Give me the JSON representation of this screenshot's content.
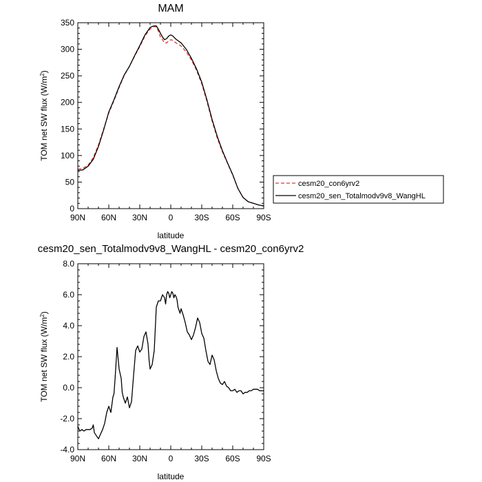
{
  "chart_data": [
    {
      "type": "line",
      "title": "MAM",
      "xlabel": "latitude",
      "ylabel": "TOM net SW flux (W/m",
      "ylabel_superscript": "2",
      "ylabel_close": ")",
      "xlim": [
        90,
        -90
      ],
      "ylim": [
        0,
        350
      ],
      "x_ticks": [
        {
          "value": 90,
          "label": "90N"
        },
        {
          "value": 60,
          "label": "60N"
        },
        {
          "value": 30,
          "label": "30N"
        },
        {
          "value": 0,
          "label": "0"
        },
        {
          "value": -30,
          "label": "30S"
        },
        {
          "value": -60,
          "label": "60S"
        },
        {
          "value": -90,
          "label": "90S"
        }
      ],
      "y_ticks": [
        {
          "value": 0,
          "label": "0"
        },
        {
          "value": 50,
          "label": "50"
        },
        {
          "value": 100,
          "label": "100"
        },
        {
          "value": 150,
          "label": "150"
        },
        {
          "value": 200,
          "label": "200"
        },
        {
          "value": 250,
          "label": "250"
        },
        {
          "value": 300,
          "label": "300"
        },
        {
          "value": 350,
          "label": "350"
        }
      ],
      "legend_position": "right",
      "series": [
        {
          "name": "cesm20_con6yrv2",
          "color": "#e8352e",
          "dash": "dashed",
          "x": [
            90,
            85,
            80,
            75,
            70,
            65,
            60,
            55,
            50,
            45,
            40,
            35,
            30,
            25,
            20,
            18,
            16,
            14,
            12,
            10,
            8,
            6,
            4,
            2,
            0,
            -2,
            -5,
            -10,
            -15,
            -20,
            -25,
            -30,
            -35,
            -40,
            -45,
            -50,
            -55,
            -60,
            -65,
            -70,
            -75,
            -80,
            -85,
            -90
          ],
          "y": [
            74,
            76,
            82,
            96,
            120,
            150,
            180,
            203,
            228,
            251,
            268,
            287,
            305,
            325,
            338,
            341,
            343,
            342,
            334,
            323,
            318,
            312,
            312,
            316,
            318,
            317,
            312,
            306,
            295,
            280,
            260,
            235,
            202,
            165,
            133,
            107,
            85,
            63,
            38,
            21,
            13,
            10,
            7,
            5
          ]
        },
        {
          "name": "cesm20_sen_Totalmodv9v8_WangHL",
          "color": "#000000",
          "dash": "solid",
          "x": [
            90,
            85,
            80,
            75,
            70,
            65,
            60,
            55,
            50,
            45,
            40,
            35,
            30,
            25,
            20,
            18,
            16,
            14,
            12,
            10,
            8,
            6,
            4,
            2,
            0,
            -2,
            -5,
            -10,
            -15,
            -20,
            -25,
            -30,
            -35,
            -40,
            -45,
            -50,
            -55,
            -60,
            -65,
            -70,
            -75,
            -80,
            -85,
            -90
          ],
          "y": [
            72,
            73,
            80,
            93,
            117,
            148,
            182,
            205,
            230,
            252,
            268,
            288,
            307,
            327,
            341,
            343,
            344,
            344,
            338,
            330,
            323,
            318,
            320,
            325,
            327,
            325,
            319,
            312,
            300,
            283,
            263,
            238,
            205,
            168,
            136,
            109,
            86,
            64,
            38,
            21,
            13,
            10,
            7,
            5
          ]
        }
      ]
    },
    {
      "type": "line",
      "title": "cesm20_sen_Totalmodv9v8_WangHL - cesm20_con6yrv2",
      "xlabel": "latitude",
      "ylabel": "TOM net SW flux (W/m",
      "ylabel_superscript": "2",
      "ylabel_close": ")",
      "xlim": [
        90,
        -90
      ],
      "ylim": [
        -4,
        8
      ],
      "x_ticks": [
        {
          "value": 90,
          "label": "90N"
        },
        {
          "value": 60,
          "label": "60N"
        },
        {
          "value": 30,
          "label": "30N"
        },
        {
          "value": 0,
          "label": "0"
        },
        {
          "value": -30,
          "label": "30S"
        },
        {
          "value": -60,
          "label": "60S"
        },
        {
          "value": -90,
          "label": "90S"
        }
      ],
      "y_ticks": [
        {
          "value": -4,
          "label": "-4.0"
        },
        {
          "value": -2,
          "label": "-2.0"
        },
        {
          "value": 0,
          "label": "0.0"
        },
        {
          "value": 2,
          "label": "2.0"
        },
        {
          "value": 4,
          "label": "4.0"
        },
        {
          "value": 6,
          "label": "6.0"
        },
        {
          "value": 8,
          "label": "8.0"
        }
      ],
      "series": [
        {
          "color": "#000000",
          "dash": "solid",
          "x": [
            90,
            88,
            86,
            84,
            82,
            80,
            78,
            76,
            75,
            74,
            72,
            70,
            68,
            66,
            64,
            62,
            60,
            58,
            56,
            55,
            54,
            52,
            50,
            48,
            47,
            46,
            45,
            44,
            42,
            40,
            38,
            36,
            34,
            32,
            30,
            28,
            26,
            24,
            22,
            21,
            20,
            18,
            16,
            14,
            12,
            10,
            8,
            6,
            5,
            4,
            3,
            2,
            1,
            0,
            -1,
            -2,
            -3,
            -4,
            -5,
            -6,
            -7,
            -8,
            -9,
            -10,
            -12,
            -14,
            -16,
            -18,
            -20,
            -22,
            -24,
            -26,
            -28,
            -30,
            -32,
            -34,
            -36,
            -38,
            -40,
            -42,
            -44,
            -46,
            -48,
            -50,
            -52,
            -54,
            -56,
            -58,
            -60,
            -62,
            -64,
            -66,
            -68,
            -70,
            -72,
            -74,
            -76,
            -78,
            -80,
            -82,
            -84,
            -86,
            -88,
            -90
          ],
          "y": [
            -2.5,
            -2.8,
            -2.7,
            -2.8,
            -2.7,
            -2.7,
            -2.7,
            -2.6,
            -2.4,
            -2.9,
            -3.1,
            -3.3,
            -3.0,
            -2.7,
            -2.3,
            -1.6,
            -1.2,
            -1.6,
            -0.6,
            -0.4,
            0.5,
            2.6,
            1.2,
            0.6,
            -0.3,
            -0.6,
            -0.8,
            -1.0,
            -0.6,
            -1.3,
            -0.9,
            0.8,
            2.4,
            2.7,
            2.3,
            2.5,
            3.3,
            3.6,
            2.8,
            1.8,
            1.2,
            1.5,
            2.4,
            5.2,
            5.6,
            5.6,
            6.0,
            5.8,
            5.4,
            6.0,
            6.2,
            6.1,
            5.8,
            6.0,
            6.2,
            6.1,
            5.8,
            6.0,
            5.9,
            5.7,
            5.2,
            5.0,
            4.8,
            5.1,
            4.7,
            4.2,
            3.6,
            3.4,
            3.1,
            3.4,
            3.9,
            4.5,
            4.2,
            3.5,
            3.2,
            2.4,
            1.7,
            1.5,
            2.1,
            1.8,
            1.1,
            0.6,
            0.3,
            0.2,
            0.4,
            0.1,
            0.0,
            -0.2,
            -0.2,
            -0.1,
            -0.3,
            -0.2,
            -0.2,
            -0.4,
            -0.3,
            -0.3,
            -0.2,
            -0.2,
            -0.1,
            -0.1,
            -0.1,
            -0.2,
            -0.2,
            -0.2
          ]
        }
      ]
    }
  ]
}
